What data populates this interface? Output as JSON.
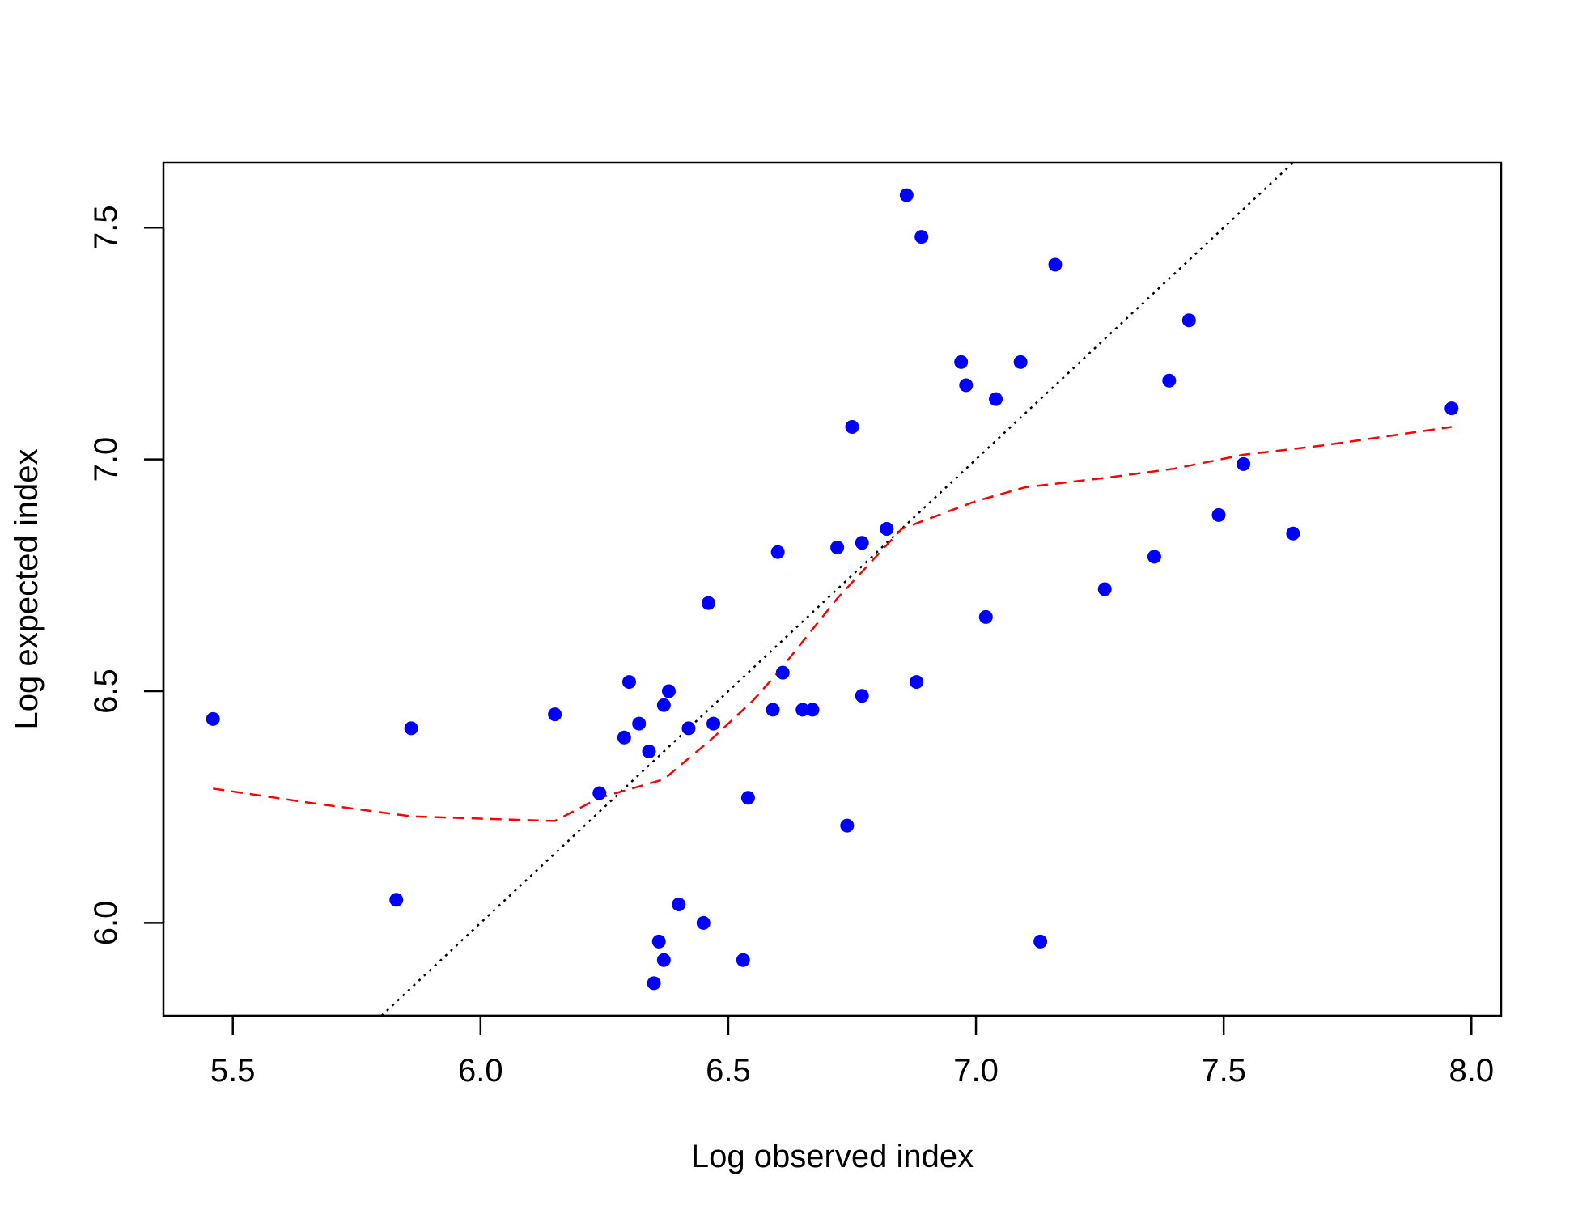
{
  "chart_data": {
    "type": "scatter",
    "title": "",
    "xlabel": "Log observed index",
    "ylabel": "Log expected index",
    "xlim": [
      5.36,
      8.06
    ],
    "ylim": [
      5.8,
      7.64
    ],
    "x_ticks": [
      5.5,
      6.0,
      6.5,
      7.0,
      7.5,
      8.0
    ],
    "x_tick_labels": [
      "5.5",
      "6.0",
      "6.5",
      "7.0",
      "7.5",
      "8.0"
    ],
    "y_ticks": [
      6.0,
      6.5,
      7.0,
      7.5
    ],
    "y_tick_labels": [
      "6.0",
      "6.5",
      "7.0",
      "7.5"
    ],
    "grid": false,
    "legend": "none",
    "colors": {
      "points": "#0000ff",
      "smooth": "#ff0000",
      "identity": "#000000"
    },
    "series": [
      {
        "kind": "points",
        "points": [
          [
            5.46,
            6.44
          ],
          [
            5.83,
            6.05
          ],
          [
            5.86,
            6.42
          ],
          [
            6.15,
            6.45
          ],
          [
            6.24,
            6.28
          ],
          [
            6.29,
            6.4
          ],
          [
            6.3,
            6.52
          ],
          [
            6.32,
            6.43
          ],
          [
            6.34,
            6.37
          ],
          [
            6.35,
            5.87
          ],
          [
            6.36,
            5.96
          ],
          [
            6.37,
            6.47
          ],
          [
            6.37,
            5.92
          ],
          [
            6.38,
            6.5
          ],
          [
            6.4,
            6.04
          ],
          [
            6.42,
            6.42
          ],
          [
            6.45,
            6.0
          ],
          [
            6.46,
            6.69
          ],
          [
            6.47,
            6.43
          ],
          [
            6.53,
            5.92
          ],
          [
            6.54,
            6.27
          ],
          [
            6.59,
            6.46
          ],
          [
            6.6,
            6.8
          ],
          [
            6.61,
            6.54
          ],
          [
            6.65,
            6.46
          ],
          [
            6.67,
            6.46
          ],
          [
            6.72,
            6.81
          ],
          [
            6.74,
            6.21
          ],
          [
            6.75,
            7.07
          ],
          [
            6.77,
            6.49
          ],
          [
            6.77,
            6.82
          ],
          [
            6.82,
            6.85
          ],
          [
            6.86,
            7.57
          ],
          [
            6.88,
            6.52
          ],
          [
            6.89,
            7.48
          ],
          [
            6.97,
            7.21
          ],
          [
            6.98,
            7.16
          ],
          [
            7.02,
            6.66
          ],
          [
            7.04,
            7.13
          ],
          [
            7.09,
            7.21
          ],
          [
            7.13,
            5.96
          ],
          [
            7.16,
            7.42
          ],
          [
            7.26,
            6.72
          ],
          [
            7.36,
            6.79
          ],
          [
            7.39,
            7.17
          ],
          [
            7.43,
            7.3
          ],
          [
            7.49,
            6.88
          ],
          [
            7.54,
            6.99
          ],
          [
            7.64,
            6.84
          ],
          [
            7.96,
            7.11
          ]
        ]
      },
      {
        "kind": "smooth-line",
        "style": "dashed",
        "points": [
          [
            5.46,
            6.29
          ],
          [
            5.65,
            6.26
          ],
          [
            5.86,
            6.23
          ],
          [
            6.0,
            6.225
          ],
          [
            6.15,
            6.22
          ],
          [
            6.24,
            6.27
          ],
          [
            6.37,
            6.31
          ],
          [
            6.47,
            6.4
          ],
          [
            6.55,
            6.48
          ],
          [
            6.6,
            6.54
          ],
          [
            6.72,
            6.7
          ],
          [
            6.85,
            6.85
          ],
          [
            7.0,
            6.91
          ],
          [
            7.1,
            6.94
          ],
          [
            7.26,
            6.96
          ],
          [
            7.4,
            6.98
          ],
          [
            7.54,
            7.01
          ],
          [
            7.7,
            7.03
          ],
          [
            7.96,
            7.07
          ]
        ]
      },
      {
        "kind": "identity-line",
        "style": "dotted",
        "points": [
          [
            5.8,
            5.8
          ],
          [
            7.64,
            7.64
          ]
        ]
      }
    ]
  }
}
